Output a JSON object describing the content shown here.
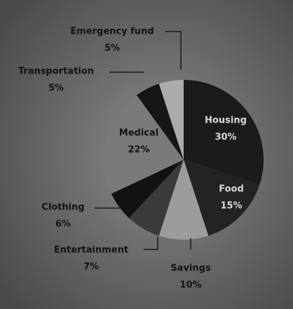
{
  "chart_data": {
    "type": "pie",
    "categories": [
      "Housing",
      "Food",
      "Savings",
      "Entertainment",
      "Clothing",
      "Medical",
      "Transportation",
      "Emergency fund"
    ],
    "values": [
      30,
      15,
      10,
      7,
      6,
      22,
      5,
      5
    ],
    "value_labels": [
      "30%",
      "15%",
      "10%",
      "7%",
      "6%",
      "22%",
      "5%",
      "5%"
    ],
    "colors": [
      "#1b1b1b",
      "#232323",
      "#9c9c9c",
      "#3b3b3b",
      "#121212",
      "#7a7a7a",
      "#161616",
      "#ababab"
    ]
  }
}
